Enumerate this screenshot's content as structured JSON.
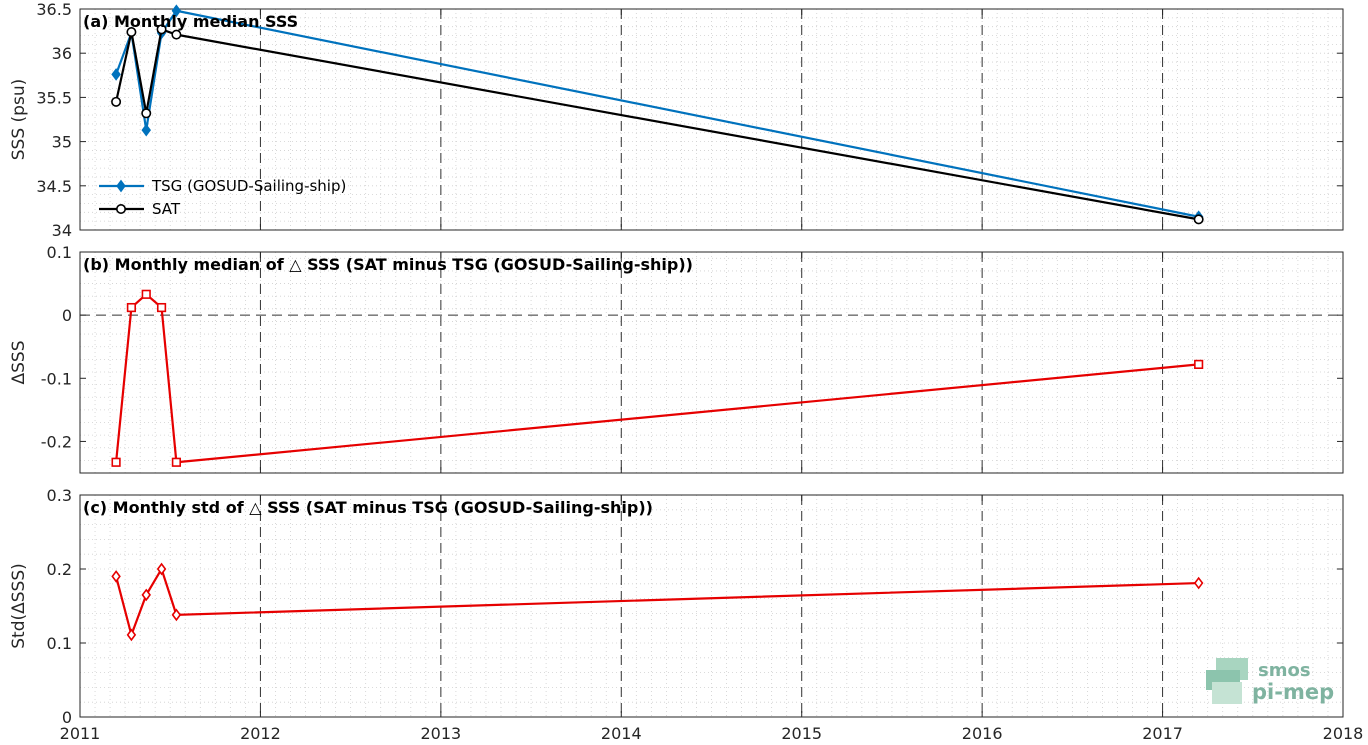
{
  "colors": {
    "tsg": "#0072BD",
    "sat": "#000000",
    "delta": "#E60000",
    "logo": "#7fb3a0"
  },
  "logo": {
    "line1": "smos",
    "line2": "pi-mep"
  },
  "chart_data": [
    {
      "type": "line",
      "title": "(a) Monthly median SSS",
      "ylabel": "SSS (psu)",
      "xlabel": "",
      "xlim": [
        "2011-01-01",
        "2018-01-01"
      ],
      "ylim": [
        34,
        36.5
      ],
      "x_ticks": [
        "2011",
        "2012",
        "2013",
        "2014",
        "2015",
        "2016",
        "2017",
        "2018"
      ],
      "y_ticks": [
        "34",
        "34.5",
        "35",
        "35.5",
        "36",
        "36.5"
      ],
      "grid": true,
      "legend": "lower-left",
      "series": [
        {
          "name": "TSG (GOSUD-Sailing-ship)",
          "marker": "diamond-filled",
          "x": [
            "2011-03-15",
            "2011-04-15",
            "2011-05-15",
            "2011-06-15",
            "2011-07-15",
            "2017-03-15"
          ],
          "y": [
            35.76,
            36.23,
            35.13,
            36.23,
            36.48,
            34.15
          ]
        },
        {
          "name": "SAT",
          "marker": "circle-open",
          "x": [
            "2011-03-15",
            "2011-04-15",
            "2011-05-15",
            "2011-06-15",
            "2011-07-15",
            "2017-03-15"
          ],
          "y": [
            35.45,
            36.24,
            35.32,
            36.27,
            36.21,
            34.12
          ]
        }
      ]
    },
    {
      "type": "line",
      "title": "(b) Monthly median of △ SSS (SAT minus TSG (GOSUD-Sailing-ship))",
      "ylabel": "ΔSSS",
      "xlabel": "",
      "xlim": [
        "2011-01-01",
        "2018-01-01"
      ],
      "ylim": [
        -0.25,
        0.1
      ],
      "x_ticks": [
        "2011",
        "2012",
        "2013",
        "2014",
        "2015",
        "2016",
        "2017",
        "2018"
      ],
      "y_ticks": [
        "-0.2",
        "-0.1",
        "0",
        "0.1"
      ],
      "zero_line": true,
      "grid": true,
      "series": [
        {
          "marker": "square-open",
          "x": [
            "2011-03-15",
            "2011-04-15",
            "2011-05-15",
            "2011-06-15",
            "2011-07-15",
            "2017-03-15"
          ],
          "y": [
            -0.233,
            0.012,
            0.033,
            0.012,
            -0.233,
            -0.078
          ]
        }
      ]
    },
    {
      "type": "line",
      "title": "(c) Monthly std of △ SSS (SAT minus TSG (GOSUD-Sailing-ship))",
      "ylabel": "Std(ΔSSS)",
      "xlabel": "",
      "xlim": [
        "2011-01-01",
        "2018-01-01"
      ],
      "ylim": [
        0,
        0.3
      ],
      "x_ticks": [
        "2011",
        "2012",
        "2013",
        "2014",
        "2015",
        "2016",
        "2017",
        "2018"
      ],
      "y_ticks": [
        "0",
        "0.1",
        "0.2",
        "0.3"
      ],
      "grid": true,
      "series": [
        {
          "marker": "diamond-open",
          "x": [
            "2011-03-15",
            "2011-04-15",
            "2011-05-15",
            "2011-06-15",
            "2011-07-15",
            "2017-03-15"
          ],
          "y": [
            0.19,
            0.111,
            0.165,
            0.2,
            0.138,
            0.181
          ]
        }
      ]
    }
  ]
}
